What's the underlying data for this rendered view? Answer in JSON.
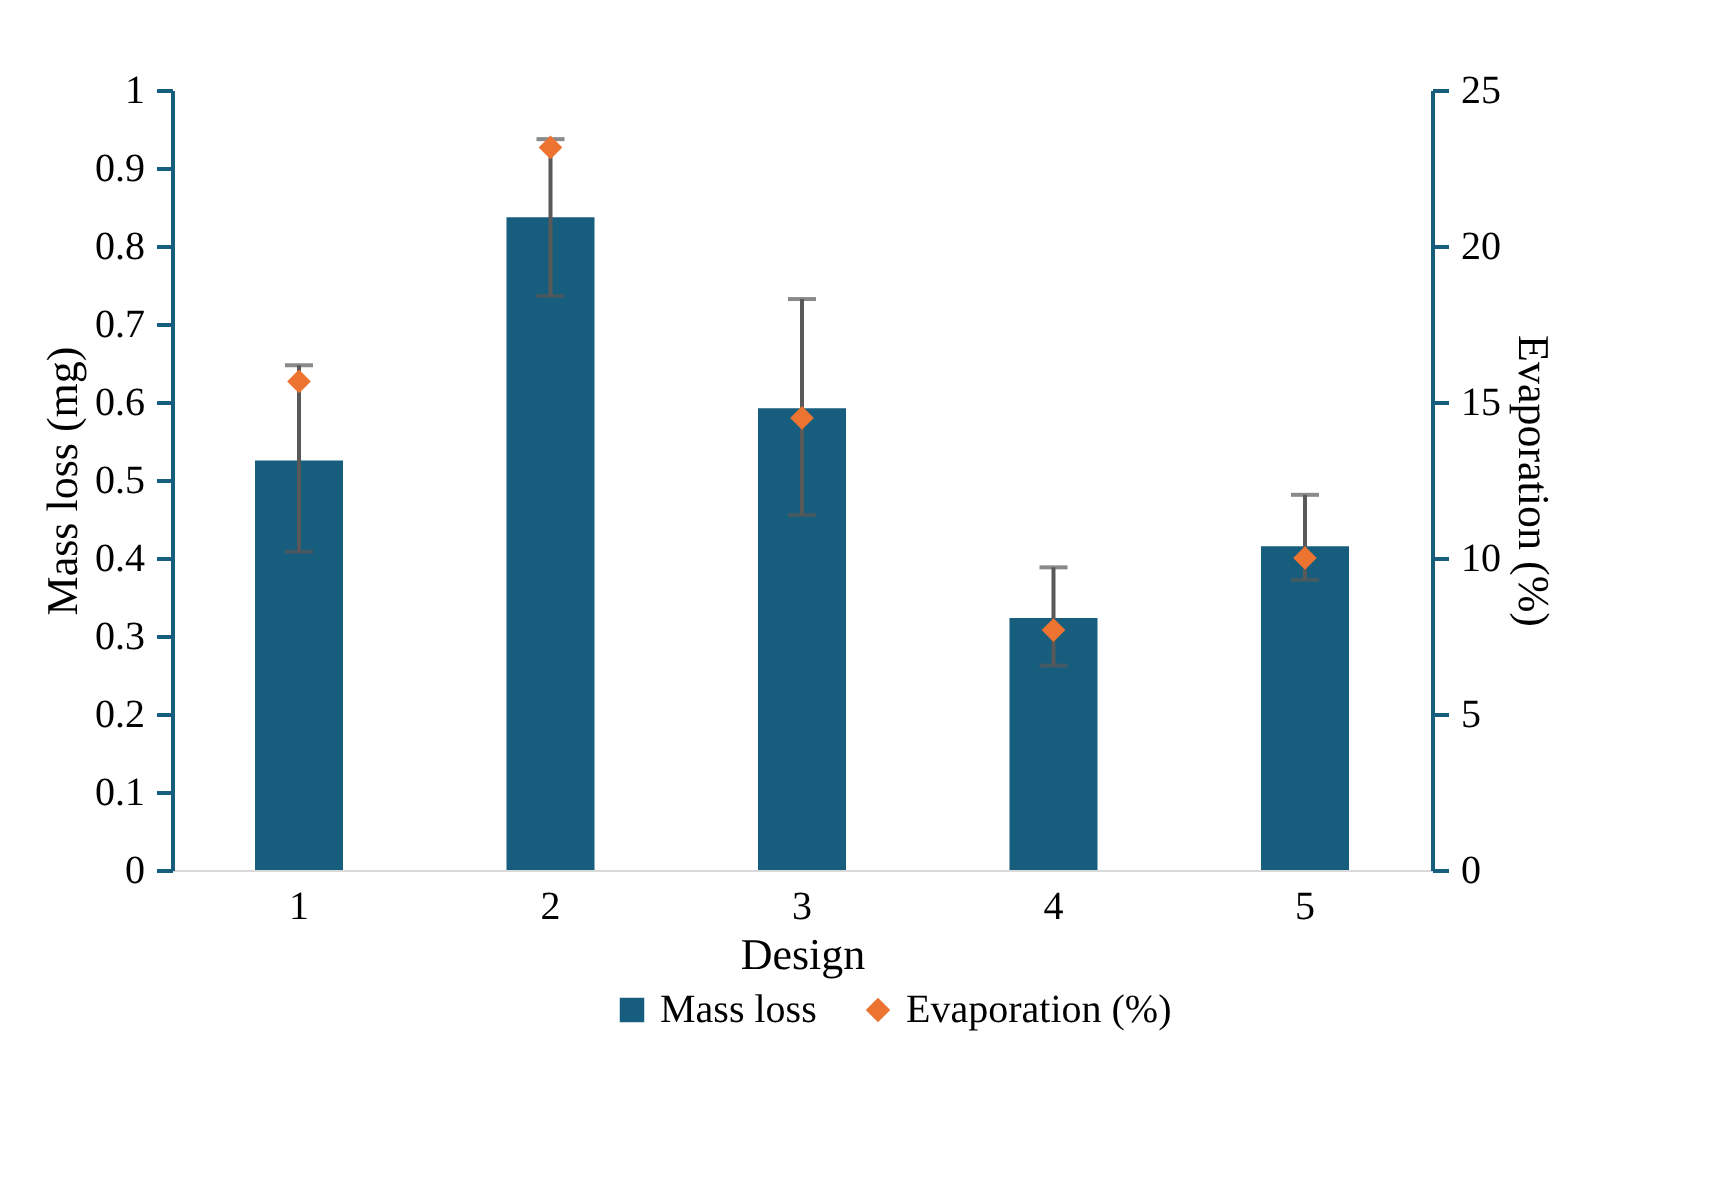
{
  "chart_data": {
    "type": "bar",
    "xlabel": "Design",
    "ylabel": "Mass loss (mg)",
    "y2label": "Evaporation (%)",
    "categories": [
      "1",
      "2",
      "3",
      "4",
      "5"
    ],
    "series": [
      {
        "name": "Mass loss",
        "color": "#175e7e",
        "values": [
          0.525,
          0.837,
          0.592,
          0.323,
          0.415
        ],
        "errors": [
          [
            0.408,
            0.647
          ],
          [
            0.736,
            0.937
          ],
          [
            0.455,
            0.732
          ],
          [
            0.262,
            0.388
          ],
          [
            0.372,
            0.481
          ]
        ]
      },
      {
        "name": "Evaporation (%)",
        "type": "scatter",
        "axis": "y2",
        "color": "#ed7331",
        "marker": "diamond",
        "values": [
          15.66,
          23.16,
          14.49,
          7.69,
          10.0
        ]
      }
    ],
    "ylim": [
      0,
      1
    ],
    "yticks": [
      0,
      0.1,
      0.2,
      0.3,
      0.4,
      0.5,
      0.6,
      0.7,
      0.8,
      0.9,
      1
    ],
    "y2lim": [
      0,
      25
    ],
    "y2ticks": [
      0,
      5,
      10,
      15,
      20,
      25
    ],
    "grid": false,
    "legend": "bottom"
  }
}
